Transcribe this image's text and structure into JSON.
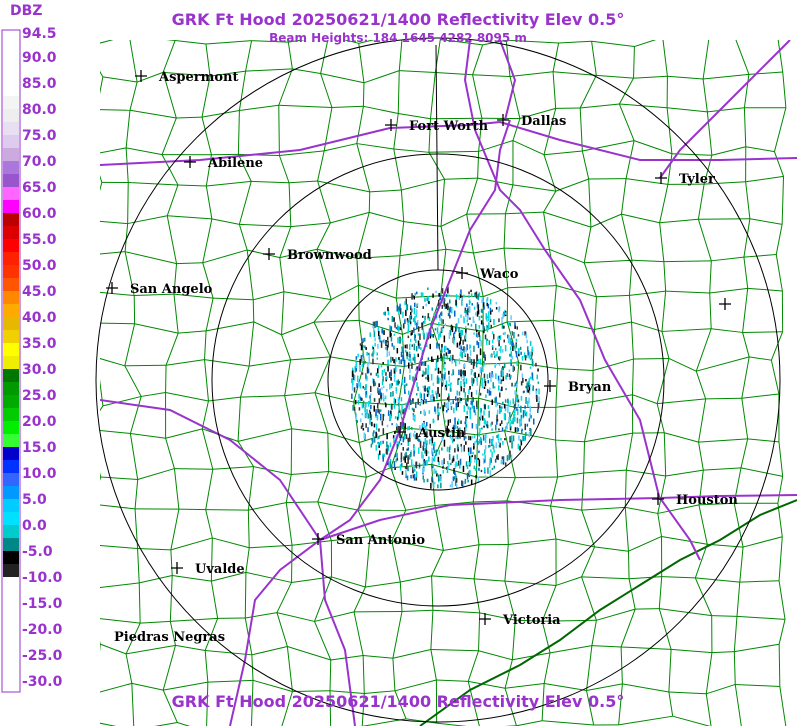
{
  "header": {
    "title": "GRK Ft Hood 20250621/1400 Reflectivity Elev 0.5°",
    "subtitle": "Beam Heights: 184 1645 4282 8095 m"
  },
  "legend": {
    "title": "DBZ",
    "labels": [
      "94.5",
      "90.0",
      "85.0",
      "80.0",
      "75.0",
      "70.0",
      "65.0",
      "60.0",
      "55.0",
      "50.0",
      "45.0",
      "40.0",
      "35.0",
      "30.0",
      "25.0",
      "20.0",
      "15.0",
      "10.0",
      "5.0",
      "0.0",
      "-5.0",
      "-10.0",
      "-15.0",
      "-20.0",
      "-25.0",
      "-30.0"
    ]
  },
  "cities": [
    {
      "name": "Aspermont"
    },
    {
      "name": "Abilene"
    },
    {
      "name": "Fort Worth"
    },
    {
      "name": "Dallas"
    },
    {
      "name": "Tyler"
    },
    {
      "name": "Brownwood"
    },
    {
      "name": "San Angelo"
    },
    {
      "name": "Waco"
    },
    {
      "name": "Bryan"
    },
    {
      "name": "Austin"
    },
    {
      "name": "Houston"
    },
    {
      "name": "San Antonio"
    },
    {
      "name": "Uvalde"
    },
    {
      "name": "Victoria"
    },
    {
      "name": "Piedras Negras"
    }
  ],
  "footer": {
    "title": "GRK Ft Hood 20250621/1400 Reflectivity Elev 0.5°"
  }
}
